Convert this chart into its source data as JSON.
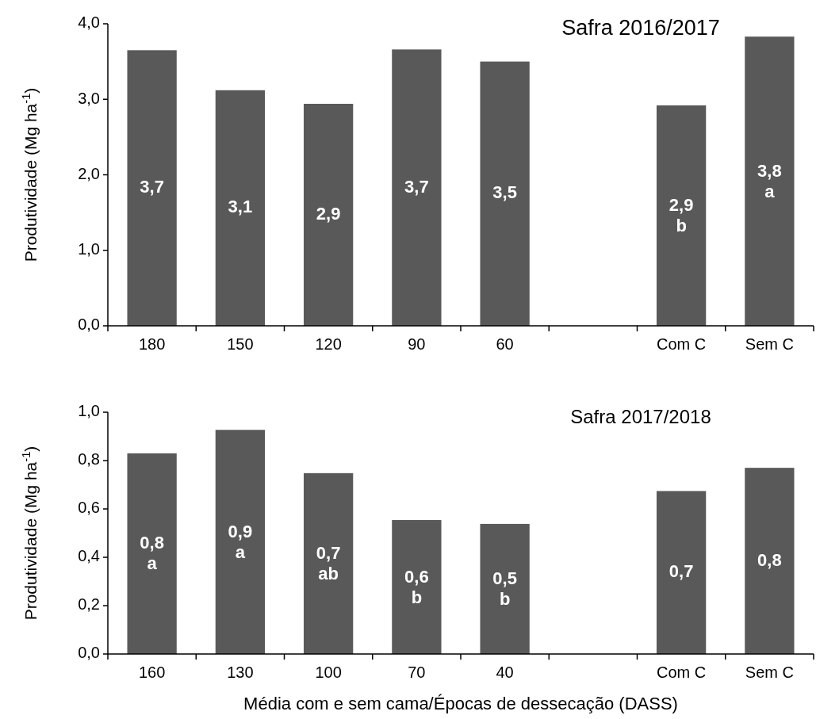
{
  "chart_data": [
    {
      "type": "bar",
      "title": "Safra 2016/2017",
      "ylabel": "Produtividade (Mg ha$^{-1}$)",
      "categories": [
        "180",
        "150",
        "120",
        "90",
        "60",
        null,
        "Com C",
        "Sem C"
      ],
      "values": [
        3.65,
        3.12,
        2.94,
        3.66,
        3.5,
        null,
        2.92,
        3.83
      ],
      "color": "#595959",
      "value_labels": [
        "3,7",
        "3,1",
        "2,9",
        "3,7",
        "3,5",
        null,
        "2,9\nb",
        "3,8\na"
      ],
      "ylim": [
        0,
        4
      ],
      "yticks": [
        {
          "value": 0,
          "label": "0,0"
        },
        {
          "value": 1,
          "label": "1,0"
        },
        {
          "value": 2,
          "label": "2,0"
        },
        {
          "value": 3,
          "label": "3,0"
        },
        {
          "value": 4,
          "label": "4,0"
        }
      ],
      "grid": false
    },
    {
      "type": "bar",
      "title": "Safra 2017/2018",
      "ylabel": "Produtividade (Mg ha$^{-1}$)",
      "xlabel": "Média com e sem cama/Épocas de dessecação (DASS)",
      "categories": [
        "160",
        "130",
        "100",
        "70",
        "40",
        null,
        "Com C",
        "Sem C"
      ],
      "values": [
        0.83,
        0.927,
        0.748,
        0.554,
        0.538,
        null,
        0.674,
        0.77
      ],
      "color": "#595959",
      "value_labels": [
        "0,8\na",
        "0,9\na",
        "0,7\nab",
        "0,6\nb",
        "0,5\nb",
        null,
        "0,7",
        "0,8"
      ],
      "ylim": [
        0,
        1
      ],
      "yticks": [
        {
          "value": 0,
          "label": "0,0"
        },
        {
          "value": 0.2,
          "label": "0,2"
        },
        {
          "value": 0.4,
          "label": "0,4"
        },
        {
          "value": 0.6,
          "label": "0,6"
        },
        {
          "value": 0.8,
          "label": "0,8"
        },
        {
          "value": 1,
          "label": "1,0"
        }
      ],
      "grid": false
    }
  ]
}
